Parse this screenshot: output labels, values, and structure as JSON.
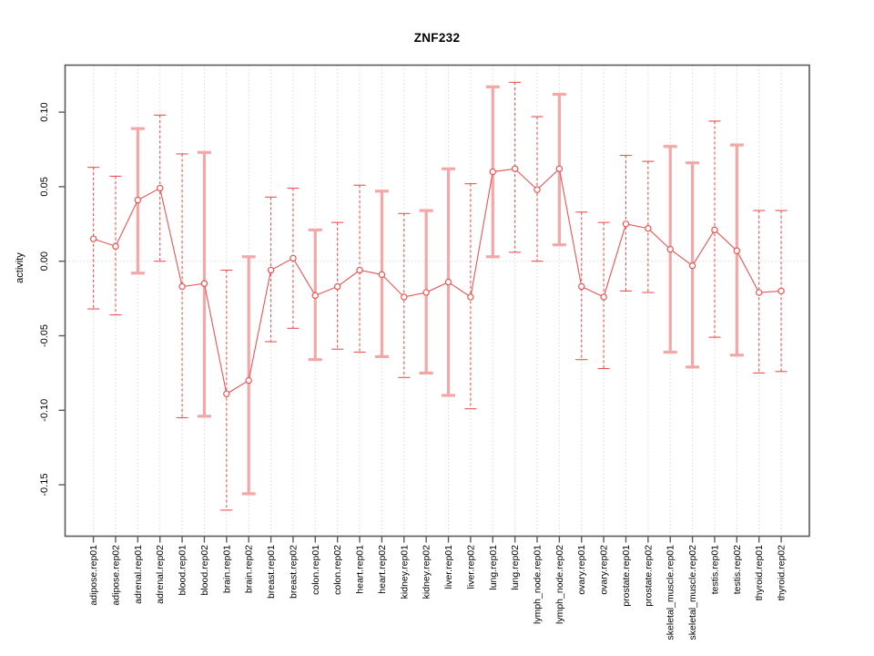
{
  "chart_data": {
    "type": "line",
    "subtype": "error-bar-plot",
    "title": "ZNF232",
    "xlabel": "",
    "ylabel": "activity",
    "ytick_labels": [
      "0.10",
      "0.05",
      "0.00",
      "-0.05",
      "-0.10",
      "-0.15"
    ],
    "ytick_values": [
      0.1,
      0.05,
      0.0,
      -0.05,
      -0.1,
      -0.15
    ],
    "ylim": [
      -0.184,
      0.132
    ],
    "grid": "vertical dotted gridline per category; horizontal dotted line at zero",
    "legend": "none",
    "marker": "open-circle",
    "categories": [
      "adipose.rep01",
      "adipose.rep02",
      "adrenal.rep01",
      "adrenal.rep02",
      "blood.rep01",
      "blood.rep02",
      "brain.rep01",
      "brain.rep02",
      "breast.rep01",
      "breast.rep02",
      "colon.rep01",
      "colon.rep02",
      "heart.rep01",
      "heart.rep02",
      "kidney.rep01",
      "kidney.rep02",
      "liver.rep01",
      "liver.rep02",
      "lung.rep01",
      "lung.rep02",
      "lymph_node.rep01",
      "lymph_node.rep02",
      "ovary.rep01",
      "ovary.rep02",
      "prostate.rep01",
      "prostate.rep02",
      "skeletal_muscle.rep01",
      "skeletal_muscle.rep02",
      "testis.rep01",
      "testis.rep02",
      "thyroid.rep01",
      "thyroid.rep02"
    ],
    "series": [
      {
        "name": "activity",
        "values": [
          0.015,
          0.01,
          0.041,
          0.049,
          -0.017,
          -0.015,
          -0.089,
          -0.08,
          -0.006,
          0.002,
          -0.023,
          -0.017,
          -0.006,
          -0.009,
          -0.024,
          -0.021,
          -0.014,
          -0.024,
          0.06,
          0.062,
          0.048,
          0.062,
          -0.017,
          -0.024,
          0.025,
          0.022,
          0.008,
          -0.003,
          0.021,
          0.007,
          -0.021,
          -0.02
        ],
        "ci_high": [
          0.063,
          0.057,
          0.089,
          0.098,
          0.072,
          0.073,
          -0.006,
          0.003,
          0.043,
          0.049,
          0.021,
          0.026,
          0.051,
          0.047,
          0.032,
          0.034,
          0.062,
          0.052,
          0.117,
          0.12,
          0.097,
          0.112,
          0.033,
          0.026,
          0.071,
          0.067,
          0.077,
          0.066,
          0.094,
          0.078,
          0.034,
          0.034
        ],
        "ci_low": [
          -0.032,
          -0.036,
          -0.008,
          0.0,
          -0.105,
          -0.104,
          -0.167,
          -0.156,
          -0.054,
          -0.045,
          -0.066,
          -0.059,
          -0.061,
          -0.064,
          -0.078,
          -0.075,
          -0.09,
          -0.099,
          0.003,
          0.006,
          0.0,
          0.011,
          -0.066,
          -0.072,
          -0.02,
          -0.021,
          -0.061,
          -0.071,
          -0.051,
          -0.063,
          -0.075,
          -0.074
        ],
        "bar_styles": [
          "dashed",
          "dashed",
          "thick",
          "dashed",
          "dashed",
          "thick",
          "dashed",
          "thick",
          "dashed",
          "dashed",
          "thick",
          "dashed",
          "dashed",
          "thick",
          "dashed",
          "thick",
          "thick",
          "dashed",
          "thick",
          "dashed",
          "dashed",
          "thick",
          "dashed",
          "dashed",
          "dashed",
          "dashed",
          "thick",
          "thick",
          "dashed",
          "thick",
          "dashed",
          "dashed"
        ]
      }
    ],
    "colors": {
      "line": "#ef5252",
      "marker_stroke": "#ef5252",
      "marker_fill": "#ffffff",
      "thick_bar": "#f5a6a6",
      "grid": "#d9d9d9",
      "frame": "#5a5a5a",
      "text": "#000000"
    }
  }
}
